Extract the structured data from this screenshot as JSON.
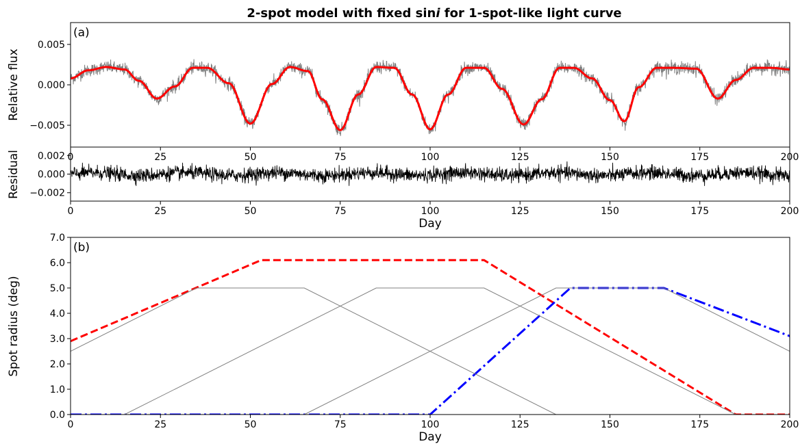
{
  "title_main": "2-spot model with fixed sin",
  "title_italic": "i",
  "title_rest": " for 1-spot-like light curve",
  "chart_data": [
    {
      "panel": "(a)",
      "type": "line",
      "ylabel": "Relative flux",
      "xlim": [
        0,
        200
      ],
      "ylim": [
        -0.0077,
        0.0077
      ],
      "x_ticks": [
        0,
        25,
        50,
        75,
        100,
        125,
        150,
        175,
        200
      ],
      "y_ticks": [
        -0.005,
        0.0,
        0.005
      ],
      "y_tick_labels": [
        "−0.005",
        "0.000",
        "0.005"
      ],
      "series": [
        {
          "role": "observed",
          "color": "#808080",
          "noise_amplitude": 0.0007
        },
        {
          "role": "model",
          "color": "#ff0000",
          "x": [
            0,
            5,
            10,
            15,
            19,
            24,
            29,
            34,
            38,
            44,
            50,
            56,
            61,
            66,
            70,
            75,
            80,
            85,
            90,
            95,
            100,
            105,
            110,
            115,
            120,
            126,
            131,
            136,
            140,
            145,
            150,
            154,
            158,
            163,
            168,
            174,
            180,
            185,
            190,
            195,
            200
          ],
          "y": [
            0.0008,
            0.0018,
            0.0022,
            0.0019,
            0.0005,
            -0.0017,
            -0.0002,
            0.0021,
            0.0021,
            0.0002,
            -0.0048,
            0.0001,
            0.0022,
            0.0017,
            -0.0018,
            -0.0056,
            -0.0012,
            0.0022,
            0.0021,
            -0.0012,
            -0.0055,
            -0.0012,
            0.0021,
            0.0021,
            -0.0005,
            -0.0049,
            -0.0018,
            0.0021,
            0.0021,
            0.0008,
            -0.0019,
            -0.0045,
            -0.0003,
            0.0021,
            0.0021,
            0.002,
            -0.0017,
            0.0006,
            0.0021,
            0.0021,
            0.0019
          ]
        }
      ]
    },
    {
      "panel": "residual",
      "type": "line",
      "xlabel": "Day",
      "ylabel": "Residual",
      "xlim": [
        0,
        200
      ],
      "ylim": [
        -0.0029,
        0.0029
      ],
      "x_ticks": [
        0,
        25,
        50,
        75,
        100,
        125,
        150,
        175,
        200
      ],
      "y_ticks": [
        -0.002,
        0.0,
        0.002
      ],
      "y_tick_labels": [
        "−0.002",
        "0.000",
        "0.002"
      ],
      "series": [
        {
          "role": "residual",
          "color": "#000000",
          "noise_amplitude": 0.0005
        }
      ]
    },
    {
      "panel": "(b)",
      "type": "line",
      "xlabel": "Day",
      "ylabel": "Spot radius (deg)",
      "xlim": [
        0,
        200
      ],
      "ylim": [
        0,
        7
      ],
      "x_ticks": [
        0,
        25,
        50,
        75,
        100,
        125,
        150,
        175,
        200
      ],
      "y_ticks": [
        0,
        1,
        2,
        3,
        4,
        5,
        6,
        7
      ],
      "y_tick_labels": [
        "0.0",
        "1.0",
        "2.0",
        "3.0",
        "4.0",
        "5.0",
        "6.0",
        "7.0"
      ],
      "series": [
        {
          "role": "spot-1",
          "color": "#ff0000",
          "style": "dashed",
          "x": [
            0,
            53,
            115,
            185,
            200
          ],
          "y": [
            2.9,
            6.1,
            6.1,
            0,
            0
          ]
        },
        {
          "role": "spot-2",
          "color": "#0000ff",
          "style": "dashdot",
          "x": [
            0,
            100,
            139,
            165,
            200
          ],
          "y": [
            0,
            0,
            5,
            5,
            3.1
          ]
        },
        {
          "role": "grey-1",
          "color": "#808080",
          "style": "solid",
          "x": [
            0,
            35,
            65,
            135
          ],
          "y": [
            2.5,
            5,
            5,
            0
          ]
        },
        {
          "role": "grey-2",
          "color": "#808080",
          "style": "solid",
          "x": [
            15,
            85,
            115,
            185
          ],
          "y": [
            0,
            5,
            5,
            0
          ]
        },
        {
          "role": "grey-3",
          "color": "#808080",
          "style": "solid",
          "x": [
            65,
            135,
            165,
            200
          ],
          "y": [
            0,
            5,
            5,
            2.5
          ]
        }
      ]
    }
  ]
}
